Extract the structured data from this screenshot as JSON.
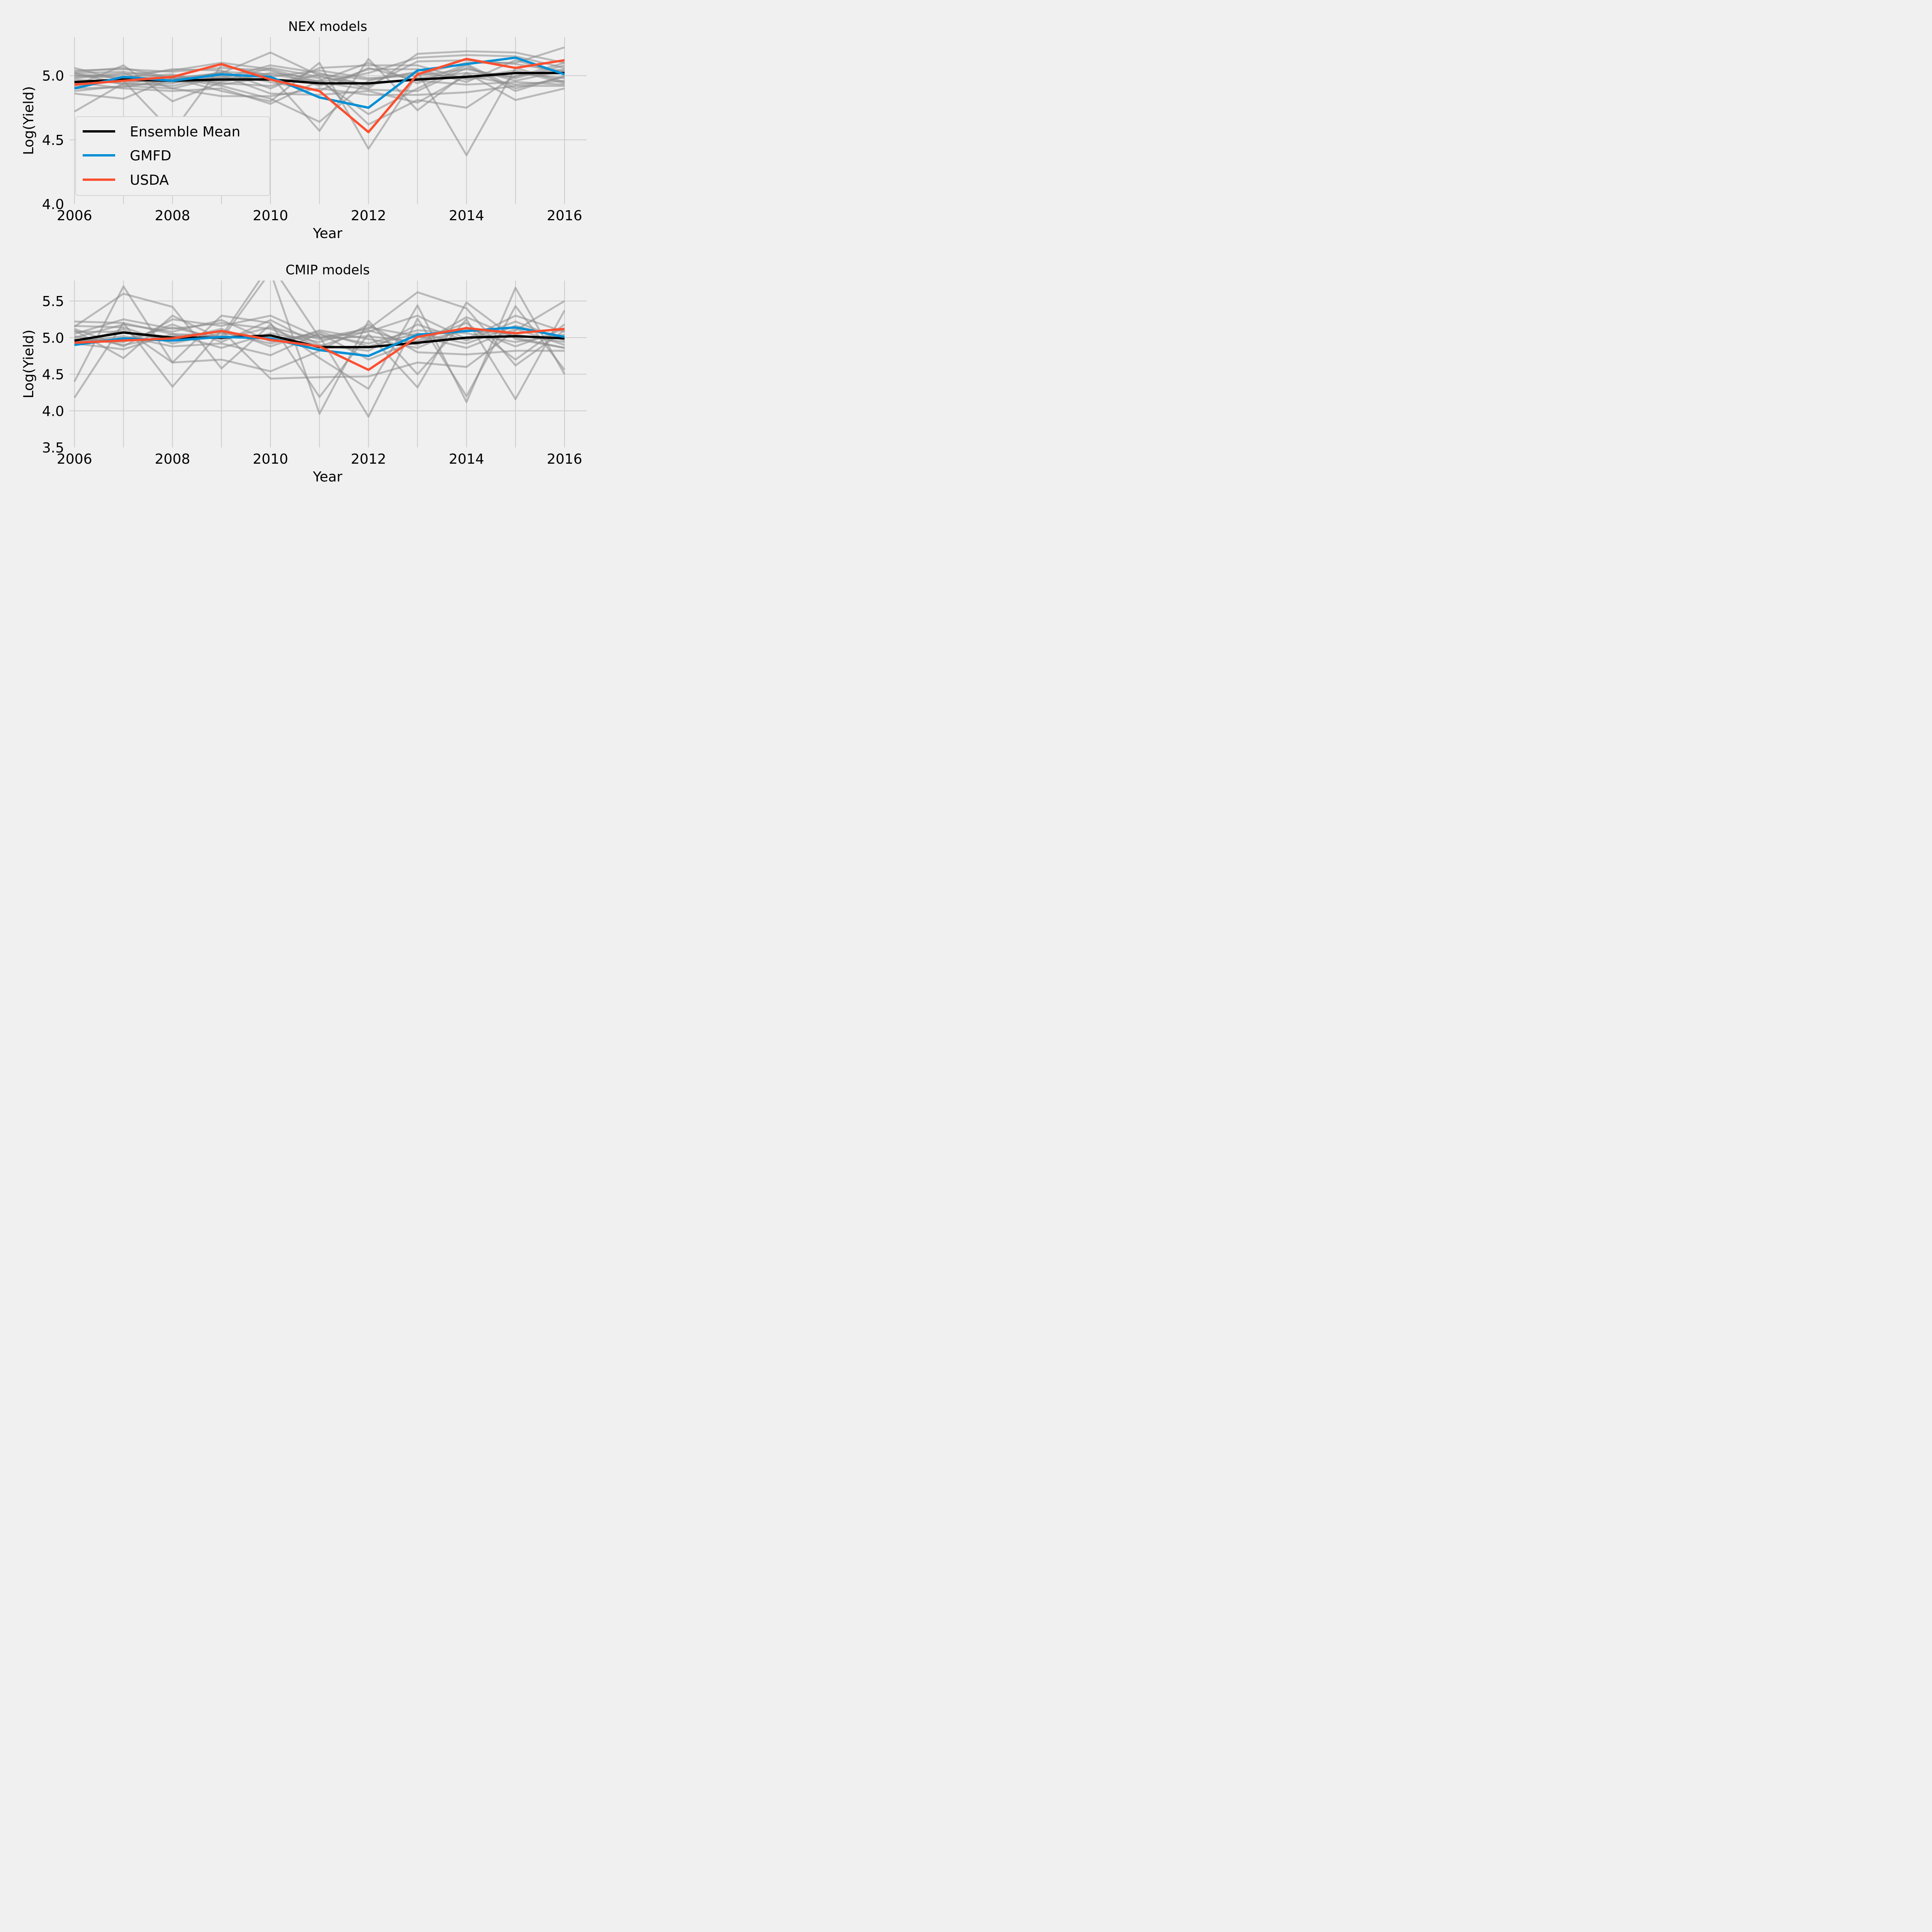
{
  "colors": {
    "background": "#f0f0f0",
    "grid": "#cbcbcb",
    "model": "#8c8c8c",
    "ensemble": "#000000",
    "gmfd": "#008fd5",
    "usda": "#fc4f30"
  },
  "chart_data": [
    {
      "type": "line",
      "title": "NEX models",
      "xlabel": "Year",
      "ylabel": "Log(Yield)",
      "xlim": [
        2005.9,
        2016.45
      ],
      "ylim": [
        4.0,
        5.3
      ],
      "xticks": [
        2006,
        2008,
        2010,
        2012,
        2014,
        2016
      ],
      "xtick_labels": [
        "2006",
        "2008",
        "2010",
        "2012",
        "2014",
        "2016"
      ],
      "yticks": [
        4.0,
        4.5,
        5.0
      ],
      "ytick_labels": [
        "4.0",
        "4.5",
        "5.0"
      ],
      "grid": true,
      "legend": {
        "placement": "center-left",
        "entries": [
          "Ensemble Mean",
          "GMFD",
          "USDA"
        ]
      },
      "x": [
        2006,
        2007,
        2008,
        2009,
        2010,
        2011,
        2012,
        2013,
        2014,
        2015,
        2016
      ],
      "series": [
        {
          "name": "Ensemble Mean",
          "color": "#000000",
          "values": [
            4.95,
            4.97,
            4.96,
            4.97,
            4.97,
            4.94,
            4.94,
            4.97,
            4.99,
            5.02,
            5.02
          ]
        },
        {
          "name": "GMFD",
          "color": "#008fd5",
          "values": [
            4.9,
            4.99,
            4.96,
            5.01,
            4.99,
            4.83,
            4.75,
            5.04,
            5.09,
            5.14,
            5.01
          ]
        },
        {
          "name": "USDA",
          "color": "#fc4f30",
          "values": [
            4.93,
            4.96,
            4.99,
            5.09,
            4.97,
            4.88,
            4.56,
            5.01,
            5.13,
            5.06,
            5.12
          ]
        }
      ],
      "model_series": [
        [
          4.72,
          4.94,
          4.98,
          5.02,
          5.18,
          5.0,
          4.9,
          5.17,
          5.19,
          5.18,
          5.1
        ],
        [
          4.86,
          4.82,
          4.98,
          4.88,
          4.8,
          5.1,
          4.43,
          5.01,
          5.1,
          5.1,
          5.22
        ],
        [
          5.06,
          4.96,
          4.56,
          5.08,
          5.0,
          4.57,
          5.13,
          4.73,
          5.02,
          4.81,
          4.9
        ],
        [
          5.02,
          5.03,
          4.98,
          4.92,
          4.82,
          4.64,
          4.96,
          5.03,
          4.38,
          5.06,
          4.95
        ],
        [
          4.92,
          5.08,
          4.8,
          4.95,
          5.02,
          4.98,
          4.62,
          4.81,
          4.75,
          5.0,
          5.05
        ],
        [
          4.98,
          5.01,
          5.04,
          5.1,
          5.05,
          4.95,
          5.02,
          5.14,
          5.16,
          5.15,
          5.06
        ],
        [
          4.88,
          4.92,
          4.9,
          4.84,
          4.84,
          4.9,
          4.85,
          4.85,
          4.87,
          4.92,
          4.92
        ],
        [
          5.0,
          4.98,
          5.05,
          5.04,
          4.9,
          5.06,
          5.08,
          5.08,
          4.97,
          5.02,
          4.98
        ],
        [
          4.95,
          4.9,
          4.88,
          4.9,
          4.78,
          4.96,
          4.7,
          4.9,
          5.08,
          4.88,
          5.0
        ],
        [
          5.03,
          5.06,
          4.98,
          4.98,
          5.08,
          5.02,
          4.92,
          5.11,
          5.12,
          5.09,
          5.03
        ],
        [
          4.9,
          4.91,
          4.97,
          5.02,
          4.95,
          4.88,
          5.06,
          4.96,
          4.93,
          4.95,
          4.93
        ],
        [
          5.01,
          4.99,
          5.01,
          4.93,
          4.99,
          5.04,
          4.98,
          5.0,
          5.05,
          4.98,
          5.08
        ],
        [
          4.97,
          4.94,
          4.92,
          5.0,
          4.86,
          4.85,
          4.88,
          4.79,
          5.0,
          4.93,
          4.96
        ],
        [
          5.04,
          5.05,
          5.03,
          5.06,
          5.04,
          4.92,
          5.05,
          5.05,
          4.95,
          5.12,
          5.01
        ],
        [
          4.94,
          4.96,
          4.95,
          4.96,
          5.06,
          4.99,
          4.93,
          4.98,
          5.02,
          4.99,
          5.1
        ],
        [
          4.99,
          5.02,
          4.9,
          4.99,
          4.97,
          4.96,
          5.1,
          4.94,
          5.09,
          4.9,
          4.99
        ],
        [
          4.91,
          4.97,
          5.0,
          4.94,
          4.92,
          5.01,
          4.97,
          5.02,
          4.98,
          5.04,
          4.94
        ],
        [
          5.02,
          4.93,
          4.94,
          5.03,
          5.01,
          4.95,
          4.89,
          4.88,
          5.06,
          4.96,
          5.04
        ]
      ]
    },
    {
      "type": "line",
      "title": "CMIP models",
      "xlabel": "Year",
      "ylabel": "Log(Yield)",
      "xlim": [
        2005.9,
        2016.45
      ],
      "ylim": [
        3.5,
        5.78
      ],
      "xticks": [
        2006,
        2008,
        2010,
        2012,
        2014,
        2016
      ],
      "xtick_labels": [
        "2006",
        "2008",
        "2010",
        "2012",
        "2014",
        "2016"
      ],
      "yticks": [
        3.5,
        4.0,
        4.5,
        5.0,
        5.5
      ],
      "ytick_labels": [
        "3.5",
        "4.0",
        "4.5",
        "5.0",
        "5.5"
      ],
      "grid": true,
      "x": [
        2006,
        2007,
        2008,
        2009,
        2010,
        2011,
        2012,
        2013,
        2014,
        2015,
        2016
      ],
      "series": [
        {
          "name": "Ensemble Mean",
          "color": "#000000",
          "values": [
            4.96,
            5.07,
            5.0,
            5.0,
            5.03,
            4.87,
            4.87,
            4.93,
            5.0,
            5.02,
            4.99
          ]
        },
        {
          "name": "GMFD",
          "color": "#008fd5",
          "values": [
            4.9,
            4.99,
            4.96,
            5.01,
            4.99,
            4.83,
            4.75,
            5.04,
            5.09,
            5.14,
            5.01
          ]
        },
        {
          "name": "USDA",
          "color": "#fc4f30",
          "values": [
            4.93,
            4.96,
            4.99,
            5.09,
            4.97,
            4.88,
            4.56,
            5.01,
            5.13,
            5.06,
            5.12
          ]
        }
      ],
      "model_series": [
        [
          4.18,
          5.2,
          5.05,
          5.02,
          6.0,
          5.0,
          5.12,
          5.62,
          5.4,
          4.62,
          5.1
        ],
        [
          4.4,
          5.7,
          4.66,
          5.3,
          5.2,
          4.19,
          5.05,
          4.32,
          5.48,
          4.98,
          4.86
        ],
        [
          5.15,
          5.6,
          5.42,
          4.58,
          5.18,
          4.72,
          4.3,
          5.44,
          4.12,
          5.68,
          4.5
        ],
        [
          5.22,
          5.2,
          4.33,
          5.1,
          4.44,
          4.46,
          4.47,
          4.66,
          4.6,
          5.1,
          5.5
        ],
        [
          5.1,
          4.72,
          5.3,
          4.98,
          5.9,
          3.96,
          5.23,
          4.5,
          5.25,
          4.16,
          5.37
        ],
        [
          5.0,
          5.18,
          5.08,
          5.24,
          4.95,
          5.02,
          3.92,
          5.26,
          4.2,
          5.43,
          4.56
        ],
        [
          4.9,
          5.12,
          4.66,
          4.7,
          4.54,
          4.82,
          5.18,
          4.8,
          4.77,
          4.82,
          4.82
        ],
        [
          5.12,
          4.88,
          5.25,
          5.16,
          5.3,
          5.0,
          5.08,
          5.3,
          4.98,
          5.3,
          5.08
        ],
        [
          4.94,
          5.02,
          4.88,
          4.92,
          4.76,
          5.06,
          4.7,
          4.96,
          5.2,
          4.7,
          5.18
        ],
        [
          5.05,
          5.25,
          5.12,
          5.2,
          5.12,
          4.88,
          5.1,
          4.9,
          5.28,
          5.0,
          4.86
        ],
        [
          4.98,
          4.94,
          5.18,
          4.94,
          5.24,
          4.9,
          4.82,
          5.18,
          4.96,
          5.22,
          4.96
        ],
        [
          5.08,
          5.08,
          4.96,
          5.12,
          4.88,
          5.1,
          4.98,
          4.86,
          5.14,
          4.88,
          5.12
        ],
        [
          4.92,
          4.84,
          5.05,
          4.86,
          5.06,
          4.94,
          5.14,
          5.02,
          4.86,
          5.12,
          4.9
        ],
        [
          5.16,
          5.14,
          4.92,
          5.06,
          4.98,
          5.04,
          4.92,
          5.1,
          5.06,
          4.94,
          5.04
        ],
        [
          4.96,
          4.98,
          5.14,
          4.98,
          5.14,
          4.98,
          5.02,
          4.94,
          5.1,
          5.04,
          4.94
        ],
        [
          5.02,
          4.9,
          5.02,
          5.08,
          4.92,
          5.08,
          4.88,
          5.06,
          4.92,
          5.16,
          5.0
        ]
      ]
    }
  ]
}
